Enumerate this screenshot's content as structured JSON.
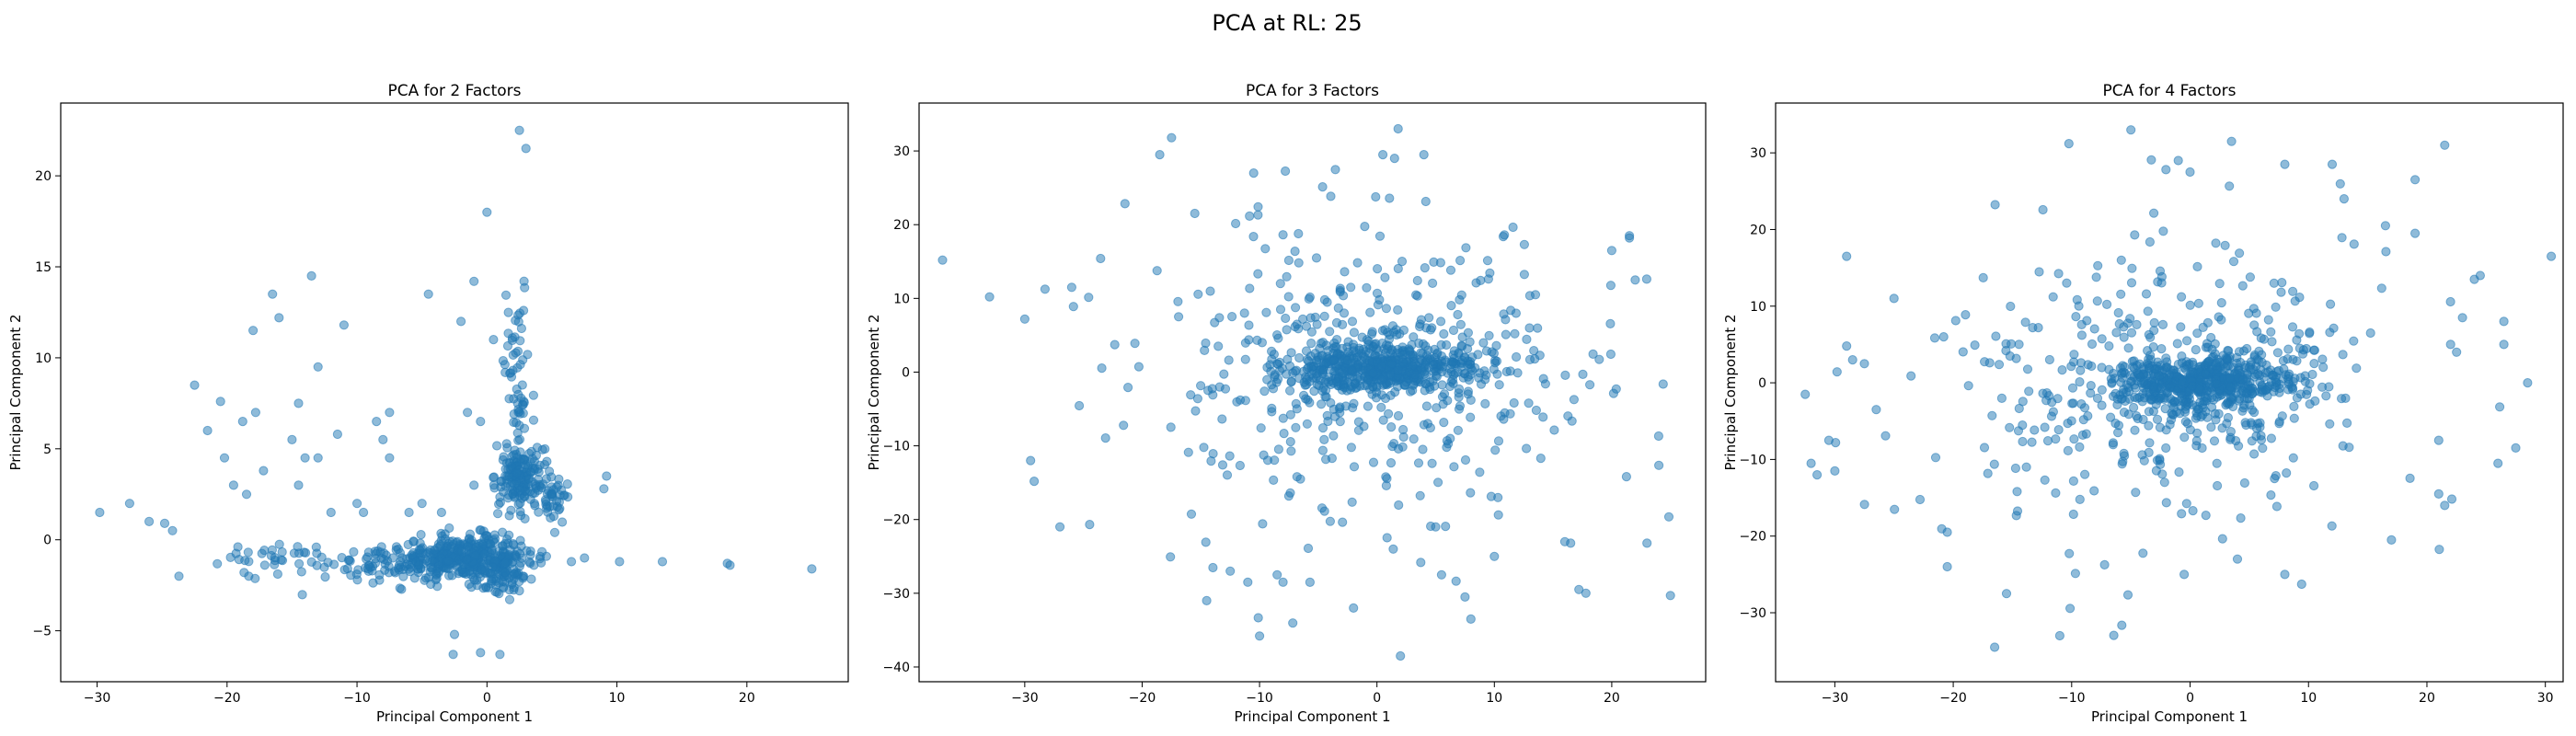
{
  "figure": {
    "title": "PCA at RL: 25"
  },
  "colors": {
    "marker": "#1f77b4"
  },
  "chart_data": [
    {
      "type": "scatter",
      "title": "PCA for 2 Factors",
      "xlabel": "Principal Component 1",
      "ylabel": "Principal Component 2",
      "xlim": [
        -32.8,
        27.8
      ],
      "ylim": [
        -7.8,
        24.0
      ],
      "xticks": [
        -30,
        -20,
        -10,
        0,
        10,
        20
      ],
      "yticks": [
        -5,
        0,
        5,
        10,
        15,
        20
      ],
      "grid": false,
      "clusters": [
        {
          "cx": -1.5,
          "cy": -1.0,
          "sx": 2.6,
          "sy": 0.6,
          "n": 380
        },
        {
          "cx": 2.5,
          "cy": 3.5,
          "sx": 0.9,
          "sy": 0.9,
          "n": 160
        },
        {
          "cx": 2.3,
          "cy": 9.0,
          "sx": 0.6,
          "sy": 2.6,
          "n": 55
        },
        {
          "cx": 5.2,
          "cy": 2.2,
          "sx": 0.6,
          "sy": 0.6,
          "n": 40
        },
        {
          "cx": -7.5,
          "cy": -1.2,
          "sx": 2.5,
          "sy": 0.5,
          "n": 70
        },
        {
          "cx": -15.0,
          "cy": -1.0,
          "sx": 3.0,
          "sy": 0.6,
          "n": 40
        },
        {
          "cx": 1.5,
          "cy": -1.8,
          "sx": 0.8,
          "sy": 0.6,
          "n": 60
        }
      ],
      "points": [
        [
          -29.8,
          1.5
        ],
        [
          -27.5,
          2.0
        ],
        [
          -26.0,
          1.0
        ],
        [
          -24.8,
          0.9
        ],
        [
          -24.2,
          0.5
        ],
        [
          -23.7,
          -2.0
        ],
        [
          -22.5,
          8.5
        ],
        [
          -21.5,
          6.0
        ],
        [
          -20.5,
          7.6
        ],
        [
          -20.2,
          4.5
        ],
        [
          -19.5,
          3.0
        ],
        [
          -18.8,
          6.5
        ],
        [
          -18.5,
          2.5
        ],
        [
          -18.0,
          11.5
        ],
        [
          -17.8,
          7.0
        ],
        [
          -17.2,
          3.8
        ],
        [
          -16.5,
          13.5
        ],
        [
          -16.0,
          12.2
        ],
        [
          -15.0,
          5.5
        ],
        [
          -14.5,
          3.0
        ],
        [
          -14.5,
          7.5
        ],
        [
          -14.0,
          4.5
        ],
        [
          -13.5,
          14.5
        ],
        [
          -13.0,
          9.5
        ],
        [
          -13.0,
          4.5
        ],
        [
          -12.0,
          1.5
        ],
        [
          -11.0,
          11.8
        ],
        [
          -11.5,
          5.8
        ],
        [
          -10.0,
          2.0
        ],
        [
          -9.5,
          1.5
        ],
        [
          -8.5,
          6.5
        ],
        [
          -8.0,
          5.5
        ],
        [
          -7.5,
          7.0
        ],
        [
          -7.5,
          4.5
        ],
        [
          -6.0,
          1.5
        ],
        [
          -5.0,
          2.0
        ],
        [
          -4.5,
          13.5
        ],
        [
          -3.5,
          1.5
        ],
        [
          -2.0,
          12.0
        ],
        [
          -1.5,
          7.0
        ],
        [
          -1.0,
          14.2
        ],
        [
          0.0,
          18.0
        ],
        [
          0.5,
          11.0
        ],
        [
          2.5,
          22.5
        ],
        [
          3.0,
          21.5
        ],
        [
          -0.5,
          6.5
        ],
        [
          -1.0,
          3.0
        ],
        [
          -2.5,
          -5.2
        ],
        [
          -2.6,
          -6.3
        ],
        [
          -0.5,
          -6.2
        ],
        [
          1.0,
          -6.3
        ],
        [
          -1.2,
          -2.6
        ],
        [
          2.5,
          -2.8
        ],
        [
          6.5,
          -1.2
        ],
        [
          7.5,
          -1.0
        ],
        [
          9.2,
          3.5
        ],
        [
          9.0,
          2.8
        ],
        [
          10.2,
          -1.2
        ],
        [
          13.5,
          -1.2
        ],
        [
          18.5,
          -1.3
        ],
        [
          18.7,
          -1.4
        ],
        [
          25.0,
          -1.6
        ]
      ]
    },
    {
      "type": "scatter",
      "title": "PCA for 3 Factors",
      "xlabel": "Principal Component 1",
      "ylabel": "Principal Component 2",
      "xlim": [
        -39.0,
        28.0
      ],
      "ylim": [
        -42.0,
        36.5
      ],
      "xticks": [
        -30,
        -20,
        -10,
        0,
        10,
        20
      ],
      "yticks": [
        -40,
        -30,
        -20,
        -10,
        0,
        10,
        20,
        30
      ],
      "grid": false,
      "clusters": [
        {
          "cx": 0.5,
          "cy": 0.5,
          "sx": 4.0,
          "sy": 1.6,
          "n": 480
        },
        {
          "cx": 1.0,
          "cy": 0.5,
          "sx": 6.5,
          "sy": 4.0,
          "n": 160
        },
        {
          "cx": -2.0,
          "cy": -1.0,
          "sx": 10.5,
          "sy": 11.5,
          "n": 330
        }
      ],
      "points": [
        [
          -37.0,
          15.2
        ],
        [
          -33.0,
          10.2
        ],
        [
          -30.0,
          7.2
        ],
        [
          -29.5,
          -12.0
        ],
        [
          -29.2,
          -14.8
        ],
        [
          -27.0,
          -21.0
        ],
        [
          -26.0,
          11.5
        ],
        [
          -18.5,
          29.5
        ],
        [
          -17.5,
          31.8
        ],
        [
          -10.5,
          27.0
        ],
        [
          -10.0,
          -35.8
        ],
        [
          -12.5,
          -27.0
        ],
        [
          -11.0,
          -28.5
        ],
        [
          -8.5,
          -27.5
        ],
        [
          -8.0,
          -28.5
        ],
        [
          -14.5,
          -31.0
        ],
        [
          -2.0,
          -32.0
        ],
        [
          0.5,
          29.5
        ],
        [
          1.5,
          29.0
        ],
        [
          1.8,
          33.0
        ],
        [
          2.0,
          -38.5
        ],
        [
          4.0,
          29.5
        ],
        [
          5.0,
          -21.0
        ],
        [
          5.5,
          -27.5
        ],
        [
          7.5,
          -30.5
        ],
        [
          8.0,
          -33.5
        ],
        [
          10.0,
          -25.0
        ],
        [
          13.5,
          10.5
        ],
        [
          16.0,
          -23.0
        ],
        [
          16.5,
          -23.2
        ],
        [
          17.2,
          -29.5
        ],
        [
          17.8,
          -30.0
        ],
        [
          20.0,
          16.5
        ],
        [
          21.5,
          18.5
        ],
        [
          21.5,
          18.2
        ],
        [
          22.0,
          12.5
        ],
        [
          23.0,
          -23.2
        ],
        [
          25.0,
          -30.3
        ]
      ]
    },
    {
      "type": "scatter",
      "title": "PCA for 4 Factors",
      "xlabel": "Principal Component 1",
      "ylabel": "Principal Component 2",
      "xlim": [
        -35.0,
        31.5
      ],
      "ylim": [
        -39.0,
        36.5
      ],
      "xticks": [
        -30,
        -20,
        -10,
        0,
        10,
        20,
        30
      ],
      "yticks": [
        -30,
        -20,
        -10,
        0,
        10,
        20,
        30
      ],
      "grid": false,
      "clusters": [
        {
          "cx": 0.5,
          "cy": 0.0,
          "sx": 3.8,
          "sy": 1.7,
          "n": 480
        },
        {
          "cx": 1.0,
          "cy": 0.0,
          "sx": 6.0,
          "sy": 4.0,
          "n": 160
        },
        {
          "cx": -2.5,
          "cy": -1.0,
          "sx": 10.5,
          "sy": 11.0,
          "n": 330
        }
      ],
      "points": [
        [
          -32.5,
          -1.5
        ],
        [
          -32.0,
          -10.5
        ],
        [
          -31.5,
          -12.0
        ],
        [
          -30.5,
          -7.5
        ],
        [
          -30.0,
          -11.5
        ],
        [
          -29.0,
          16.5
        ],
        [
          -29.0,
          4.8
        ],
        [
          -28.5,
          3.0
        ],
        [
          -27.5,
          2.5
        ],
        [
          -26.5,
          -3.5
        ],
        [
          -25.0,
          11.0
        ],
        [
          -20.5,
          -19.5
        ],
        [
          -20.5,
          -24.0
        ],
        [
          -16.5,
          -34.5
        ],
        [
          -15.5,
          -27.5
        ],
        [
          -11.0,
          -33.0
        ],
        [
          -5.0,
          33.0
        ],
        [
          -1.0,
          29.0
        ],
        [
          0.0,
          27.5
        ],
        [
          -0.5,
          -25.0
        ],
        [
          3.5,
          31.5
        ],
        [
          4.0,
          -23.0
        ],
        [
          8.0,
          28.5
        ],
        [
          8.0,
          -25.0
        ],
        [
          12.0,
          28.5
        ],
        [
          13.0,
          24.0
        ],
        [
          16.5,
          20.5
        ],
        [
          17.0,
          -20.5
        ],
        [
          19.0,
          19.5
        ],
        [
          19.0,
          26.5
        ],
        [
          21.5,
          31.0
        ],
        [
          21.0,
          -14.5
        ],
        [
          21.5,
          -16.0
        ],
        [
          21.0,
          -7.5
        ],
        [
          22.0,
          5.0
        ],
        [
          22.5,
          4.0
        ],
        [
          23.0,
          8.5
        ],
        [
          24.0,
          13.5
        ],
        [
          24.5,
          14.0
        ],
        [
          26.0,
          -10.5
        ],
        [
          26.5,
          8.0
        ],
        [
          26.5,
          5.0
        ],
        [
          27.5,
          -8.5
        ],
        [
          28.5,
          0.0
        ],
        [
          30.5,
          16.5
        ]
      ]
    }
  ]
}
